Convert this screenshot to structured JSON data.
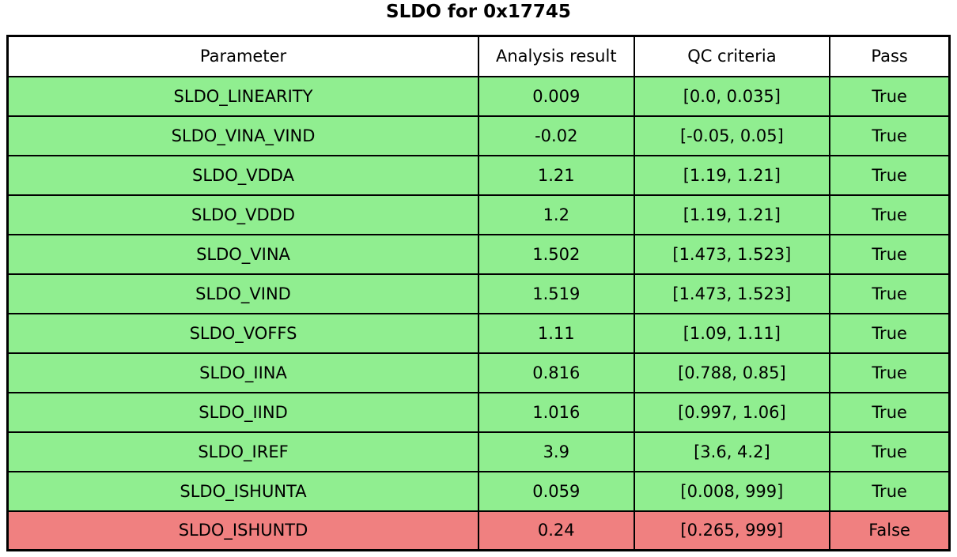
{
  "title": "SLDO for 0x17745",
  "colors": {
    "pass_green": "#90ee90",
    "fail_red": "#f08080",
    "border": "#000000",
    "background": "#ffffff",
    "text": "#000000"
  },
  "chart_data": {
    "type": "table",
    "title": "SLDO for 0x17745",
    "columns": [
      "Parameter",
      "Analysis result",
      "QC criteria",
      "Pass"
    ],
    "rows": [
      {
        "parameter": "SLDO_LINEARITY",
        "analysis_result": "0.009",
        "qc_criteria": "[0.0, 0.035]",
        "pass": "True"
      },
      {
        "parameter": "SLDO_VINA_VIND",
        "analysis_result": "-0.02",
        "qc_criteria": "[-0.05, 0.05]",
        "pass": "True"
      },
      {
        "parameter": "SLDO_VDDA",
        "analysis_result": "1.21",
        "qc_criteria": "[1.19, 1.21]",
        "pass": "True"
      },
      {
        "parameter": "SLDO_VDDD",
        "analysis_result": "1.2",
        "qc_criteria": "[1.19, 1.21]",
        "pass": "True"
      },
      {
        "parameter": "SLDO_VINA",
        "analysis_result": "1.502",
        "qc_criteria": "[1.473, 1.523]",
        "pass": "True"
      },
      {
        "parameter": "SLDO_VIND",
        "analysis_result": "1.519",
        "qc_criteria": "[1.473, 1.523]",
        "pass": "True"
      },
      {
        "parameter": "SLDO_VOFFS",
        "analysis_result": "1.11",
        "qc_criteria": "[1.09, 1.11]",
        "pass": "True"
      },
      {
        "parameter": "SLDO_IINA",
        "analysis_result": "0.816",
        "qc_criteria": "[0.788, 0.85]",
        "pass": "True"
      },
      {
        "parameter": "SLDO_IIND",
        "analysis_result": "1.016",
        "qc_criteria": "[0.997, 1.06]",
        "pass": "True"
      },
      {
        "parameter": "SLDO_IREF",
        "analysis_result": "3.9",
        "qc_criteria": "[3.6, 4.2]",
        "pass": "True"
      },
      {
        "parameter": "SLDO_ISHUNTA",
        "analysis_result": "0.059",
        "qc_criteria": "[0.008, 999]",
        "pass": "True"
      },
      {
        "parameter": "SLDO_ISHUNTD",
        "analysis_result": "0.24",
        "qc_criteria": "[0.265, 999]",
        "pass": "False"
      }
    ]
  }
}
